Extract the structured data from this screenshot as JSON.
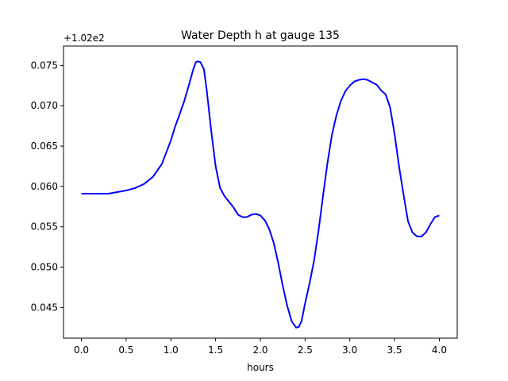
{
  "chart_data": {
    "type": "line",
    "title": "Water Depth h at gauge 135",
    "xlabel": "hours",
    "ylabel": "",
    "y_offset_label": "+1.02e2",
    "xlim": [
      -0.2,
      4.2
    ],
    "ylim": [
      0.0412,
      0.0774
    ],
    "x_ticks": [
      0.0,
      0.5,
      1.0,
      1.5,
      2.0,
      2.5,
      3.0,
      3.5,
      4.0
    ],
    "x_tick_labels": [
      "0.0",
      "0.5",
      "1.0",
      "1.5",
      "2.0",
      "2.5",
      "3.0",
      "3.5",
      "4.0"
    ],
    "y_ticks": [
      0.045,
      0.05,
      0.055,
      0.06,
      0.065,
      0.07,
      0.075
    ],
    "y_tick_labels": [
      "0.045",
      "0.050",
      "0.055",
      "0.060",
      "0.065",
      "0.070",
      "0.075"
    ],
    "grid": false,
    "series": [
      {
        "color": "#0000ff",
        "x": [
          0.0,
          0.1,
          0.2,
          0.25,
          0.3,
          0.4,
          0.5,
          0.6,
          0.7,
          0.8,
          0.9,
          1.0,
          1.05,
          1.1,
          1.15,
          1.2,
          1.25,
          1.28,
          1.3,
          1.33,
          1.37,
          1.4,
          1.45,
          1.5,
          1.55,
          1.6,
          1.65,
          1.7,
          1.75,
          1.8,
          1.85,
          1.9,
          1.95,
          2.0,
          2.05,
          2.1,
          2.15,
          2.2,
          2.25,
          2.3,
          2.35,
          2.4,
          2.43,
          2.46,
          2.5,
          2.55,
          2.6,
          2.65,
          2.7,
          2.75,
          2.8,
          2.85,
          2.9,
          2.95,
          3.0,
          3.05,
          3.1,
          3.15,
          3.2,
          3.25,
          3.3,
          3.35,
          3.4,
          3.45,
          3.5,
          3.55,
          3.6,
          3.65,
          3.7,
          3.75,
          3.8,
          3.85,
          3.9,
          3.95,
          4.0
        ],
        "y": [
          0.0591,
          0.0591,
          0.0591,
          0.0591,
          0.0591,
          0.0593,
          0.0595,
          0.0598,
          0.0603,
          0.0612,
          0.0628,
          0.0657,
          0.0675,
          0.069,
          0.0706,
          0.0725,
          0.0745,
          0.0754,
          0.0755,
          0.0754,
          0.0745,
          0.072,
          0.067,
          0.0625,
          0.0598,
          0.0588,
          0.0581,
          0.0574,
          0.0565,
          0.0562,
          0.0562,
          0.0565,
          0.0566,
          0.0564,
          0.0558,
          0.0547,
          0.053,
          0.0505,
          0.0477,
          0.0452,
          0.0433,
          0.0425,
          0.0426,
          0.0433,
          0.0455,
          0.048,
          0.0508,
          0.0545,
          0.0588,
          0.0629,
          0.0664,
          0.0688,
          0.0706,
          0.0718,
          0.0725,
          0.073,
          0.0732,
          0.0733,
          0.0732,
          0.0729,
          0.0726,
          0.0719,
          0.0714,
          0.0698,
          0.0665,
          0.0625,
          0.059,
          0.0557,
          0.0543,
          0.0538,
          0.0538,
          0.0543,
          0.0553,
          0.0562,
          0.0564
        ]
      }
    ]
  }
}
